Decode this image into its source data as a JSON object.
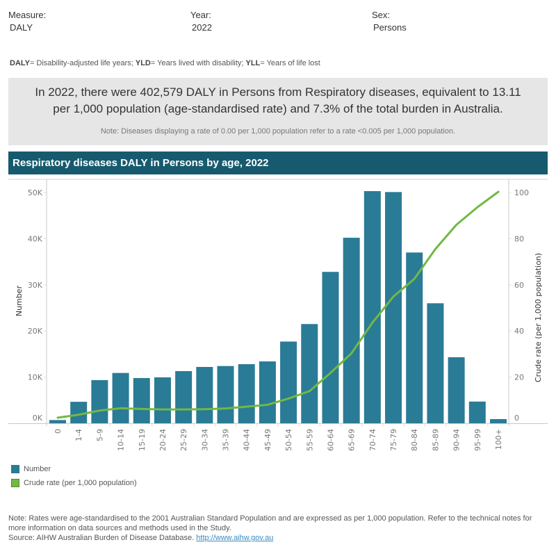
{
  "filters": {
    "measure": {
      "label": "Measure:",
      "value": "DALY"
    },
    "year": {
      "label": "Year:",
      "value": "2022"
    },
    "sex": {
      "label": "Sex:",
      "value": "Persons"
    }
  },
  "abbreviations": [
    {
      "term": "DALY",
      "definition": "= Disability-adjusted life years; "
    },
    {
      "term": "YLD",
      "definition": "= Years lived with disability; "
    },
    {
      "term": "YLL",
      "definition": "= Years of life lost"
    }
  ],
  "summary": {
    "main": "In 2022, there were 402,579 DALY in Persons from Respiratory diseases, equivalent to 13.11 per 1,000 population (age-standardised rate) and 7.3% of the total burden in Australia.",
    "note": "Note: Diseases displaying a rate of 0.00 per 1,000 population refer to a rate <0.005 per 1,000 population."
  },
  "chart_header": "Respiratory diseases DALY in Persons by age, 2022",
  "colors": {
    "bar": "#2a7b96",
    "line": "#72b845",
    "header_bg": "#175a6e",
    "summary_bg": "#e6e6e6"
  },
  "chart_data": {
    "type": "bar",
    "title": "Respiratory diseases DALY in Persons by age, 2022",
    "categories": [
      "0",
      "1-4",
      "5-9",
      "10-14",
      "15-19",
      "20-24",
      "25-29",
      "30-34",
      "35-39",
      "40-44",
      "45-49",
      "50-54",
      "55-59",
      "60-64",
      "65-69",
      "70-74",
      "75-79",
      "80-84",
      "85-89",
      "90-94",
      "95-99",
      "100+"
    ],
    "series": [
      {
        "name": "Number",
        "type": "bar",
        "axis": "left",
        "values": [
          700,
          4650,
          9350,
          10900,
          9800,
          9950,
          11300,
          12200,
          12400,
          12800,
          13400,
          17700,
          21500,
          32800,
          40200,
          50300,
          50100,
          37000,
          26000,
          14300,
          4700,
          900
        ]
      },
      {
        "name": "Crude rate (per 1,000 population)",
        "type": "line",
        "axis": "right",
        "values": [
          2.4,
          3.7,
          5.5,
          6.5,
          6.2,
          6.0,
          6.0,
          6.1,
          6.4,
          7.2,
          8.0,
          10.7,
          13.9,
          21.8,
          30.3,
          43.6,
          54.9,
          62.6,
          75.5,
          86.0,
          93.6,
          100.3
        ]
      }
    ],
    "ylabel": "Number",
    "ylim": [
      0,
      50000
    ],
    "yticks": [
      0,
      10000,
      20000,
      30000,
      40000,
      50000
    ],
    "ytick_labels": [
      "0K",
      "10K",
      "20K",
      "30K",
      "40K",
      "50K"
    ],
    "y2label": "Crude rate (per 1,000 population)",
    "y2lim": [
      0,
      100
    ],
    "y2ticks": [
      0,
      20,
      40,
      60,
      80,
      100
    ],
    "y2tick_labels": [
      "0",
      "20",
      "40",
      "60",
      "80",
      "100"
    ],
    "xlabel": "",
    "grid": false,
    "legend_position": "bottom-left"
  },
  "legend": [
    {
      "label": "Number",
      "color": "#2a7b96"
    },
    {
      "label": "Crude rate (per 1,000 population)",
      "color": "#72b845"
    }
  ],
  "footer": {
    "note": "Note: Rates were age-standardised to the 2001 Australian Standard Population and are expressed as per 1,000 population. Refer to the technical notes for more information on data sources and methods used in the Study.",
    "source_prefix": "Source: AIHW Australian Burden of Disease Database. ",
    "source_link": "http://www.aihw.gov.au"
  }
}
